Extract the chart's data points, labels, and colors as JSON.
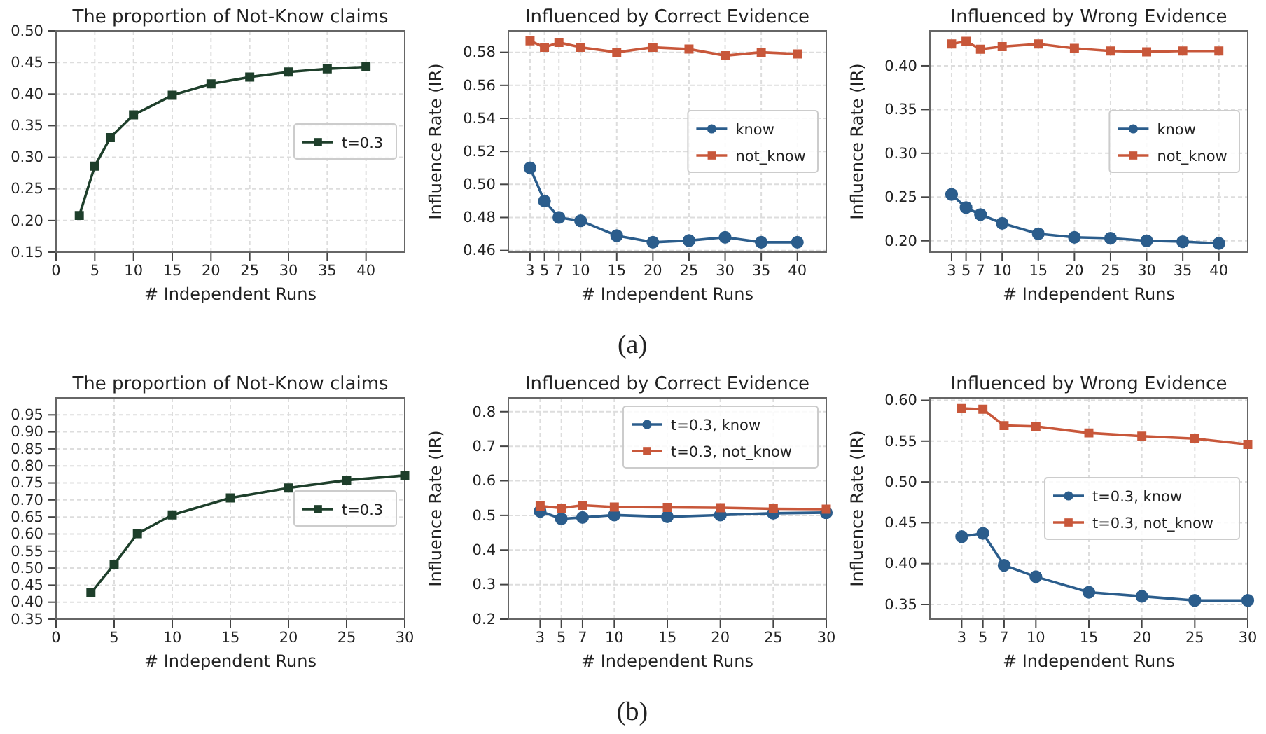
{
  "chart_data": [
    {
      "type": "line",
      "title": "The proportion of Not-Know claims",
      "xlabel": "# Independent Runs",
      "x": [
        3,
        5,
        7,
        10,
        15,
        20,
        25,
        30,
        35,
        40
      ],
      "xlim": [
        0,
        45
      ],
      "xticks": [
        0,
        5,
        10,
        15,
        20,
        25,
        30,
        35,
        40
      ],
      "ylim": [
        0.15,
        0.5
      ],
      "yticks": [
        0.15,
        {
          "value": 0.2,
          "label": "0.20"
        },
        0.25,
        {
          "value": 0.3,
          "label": "0.30"
        },
        0.35,
        {
          "value": 0.4,
          "label": "0.40"
        },
        0.45,
        {
          "value": 0.5,
          "label": "0.50"
        }
      ],
      "grid": true,
      "legend": "right",
      "marker": "square",
      "series": [
        {
          "name": "t=0.3",
          "color": "#1e3f2b",
          "values": [
            0.208,
            0.286,
            0.331,
            0.367,
            0.398,
            0.416,
            0.427,
            0.435,
            0.44,
            0.443
          ]
        }
      ]
    },
    {
      "type": "line",
      "title": "Influenced by Correct Evidence",
      "xlabel": "# Independent Runs",
      "ylabel": "Influence Rate (IR)",
      "x": [
        3,
        5,
        7,
        10,
        15,
        20,
        25,
        30,
        35,
        40
      ],
      "xlim": [
        0,
        44
      ],
      "xticks": [
        3,
        5,
        7,
        10,
        15,
        20,
        25,
        30,
        35,
        40
      ],
      "ylim": [
        0.459,
        0.593
      ],
      "yticks": [
        0.46,
        0.48,
        {
          "value": 0.5,
          "label": "0.50"
        },
        0.52,
        0.54,
        0.56,
        0.58
      ],
      "grid": true,
      "legend": "right",
      "annotations": [
        "(a)"
      ],
      "series": [
        {
          "name": "know",
          "color": "#2b5d8c",
          "marker": "circle",
          "values": [
            0.51,
            0.49,
            0.48,
            0.478,
            0.469,
            0.465,
            0.466,
            0.468,
            0.465,
            0.465
          ]
        },
        {
          "name": "not_know",
          "color": "#c8573a",
          "marker": "square",
          "values": [
            0.587,
            0.583,
            0.586,
            0.583,
            0.58,
            0.583,
            0.582,
            0.578,
            0.58,
            0.579
          ]
        }
      ]
    },
    {
      "type": "line",
      "title": "Influenced by Wrong Evidence",
      "xlabel": "# Independent Runs",
      "ylabel": "Influence Rate (IR)",
      "x": [
        3,
        5,
        7,
        10,
        15,
        20,
        25,
        30,
        35,
        40
      ],
      "xlim": [
        0,
        44
      ],
      "xticks": [
        3,
        5,
        7,
        10,
        15,
        20,
        25,
        30,
        35,
        40
      ],
      "ylim": [
        0.187,
        0.44
      ],
      "yticks": [
        {
          "value": 0.2,
          "label": "0.20"
        },
        0.25,
        {
          "value": 0.3,
          "label": "0.30"
        },
        0.35,
        {
          "value": 0.4,
          "label": "0.40"
        }
      ],
      "grid": true,
      "legend": "right",
      "series": [
        {
          "name": "know",
          "color": "#2b5d8c",
          "marker": "circle",
          "values": [
            0.253,
            0.238,
            0.23,
            0.22,
            0.208,
            0.204,
            0.203,
            0.2,
            0.199,
            0.197
          ]
        },
        {
          "name": "not_know",
          "color": "#c8573a",
          "marker": "square",
          "values": [
            0.425,
            0.428,
            0.419,
            0.422,
            0.425,
            0.42,
            0.417,
            0.416,
            0.417,
            0.417
          ]
        }
      ]
    },
    {
      "type": "line",
      "title": "The proportion of Not-Know claims",
      "xlabel": "# Independent Runs",
      "x": [
        3,
        5,
        7,
        10,
        15,
        20,
        25,
        30
      ],
      "xlim": [
        0,
        30
      ],
      "xticks": [
        0,
        5,
        10,
        15,
        20,
        25,
        30
      ],
      "ylim": [
        0.35,
        1.0
      ],
      "yticks": [
        0.35,
        {
          "value": 0.4,
          "label": "0.40"
        },
        0.45,
        {
          "value": 0.5,
          "label": "0.50"
        },
        0.55,
        {
          "value": 0.6,
          "label": "0.60"
        },
        0.65,
        {
          "value": 0.7,
          "label": "0.70"
        },
        0.75,
        {
          "value": 0.8,
          "label": "0.80"
        },
        0.85,
        {
          "value": 0.9,
          "label": "0.90"
        },
        0.95
      ],
      "grid": true,
      "legend": "right",
      "marker": "square",
      "series": [
        {
          "name": "t=0.3",
          "color": "#1e3f2b",
          "values": [
            0.427,
            0.511,
            0.601,
            0.656,
            0.706,
            0.735,
            0.758,
            0.772
          ]
        }
      ]
    },
    {
      "type": "line",
      "title": "Influenced by Correct Evidence",
      "xlabel": "# Independent Runs",
      "ylabel": "Influence Rate (IR)",
      "x": [
        3,
        5,
        7,
        10,
        15,
        20,
        25,
        30
      ],
      "xlim": [
        0,
        30
      ],
      "xticks": [
        3,
        5,
        7,
        10,
        15,
        20,
        25,
        30
      ],
      "ylim": [
        0.2,
        0.84
      ],
      "yticks": [
        0.2,
        0.3,
        0.4,
        0.5,
        0.6,
        0.7,
        0.8
      ],
      "grid": true,
      "legend": "top right",
      "annotations": [
        "(b)"
      ],
      "series": [
        {
          "name": "t=0.3, know",
          "color": "#2b5d8c",
          "marker": "circle",
          "values": [
            0.512,
            0.49,
            0.494,
            0.501,
            0.496,
            0.501,
            0.506,
            0.508
          ]
        },
        {
          "name": "t=0.3, not_know",
          "color": "#c8573a",
          "marker": "square",
          "values": [
            0.527,
            0.521,
            0.529,
            0.524,
            0.523,
            0.522,
            0.519,
            0.518
          ]
        }
      ]
    },
    {
      "type": "line",
      "title": "Influenced by Wrong Evidence",
      "xlabel": "# Independent Runs",
      "ylabel": "Influence Rate (IR)",
      "x": [
        3,
        5,
        7,
        10,
        15,
        20,
        25,
        30
      ],
      "xlim": [
        0,
        30
      ],
      "xticks": [
        3,
        5,
        7,
        10,
        15,
        20,
        25,
        30
      ],
      "ylim": [
        0.332,
        0.603
      ],
      "yticks": [
        0.35,
        {
          "value": 0.4,
          "label": "0.40"
        },
        0.45,
        {
          "value": 0.5,
          "label": "0.50"
        },
        0.55,
        {
          "value": 0.6,
          "label": "0.60"
        }
      ],
      "grid": true,
      "legend": "right",
      "series": [
        {
          "name": "t=0.3, know",
          "color": "#2b5d8c",
          "marker": "circle",
          "values": [
            0.433,
            0.437,
            0.398,
            0.384,
            0.365,
            0.36,
            0.355,
            0.355
          ]
        },
        {
          "name": "t=0.3, not_know",
          "color": "#c8573a",
          "marker": "square",
          "values": [
            0.59,
            0.589,
            0.569,
            0.568,
            0.56,
            0.556,
            0.553,
            0.546
          ]
        }
      ]
    }
  ]
}
